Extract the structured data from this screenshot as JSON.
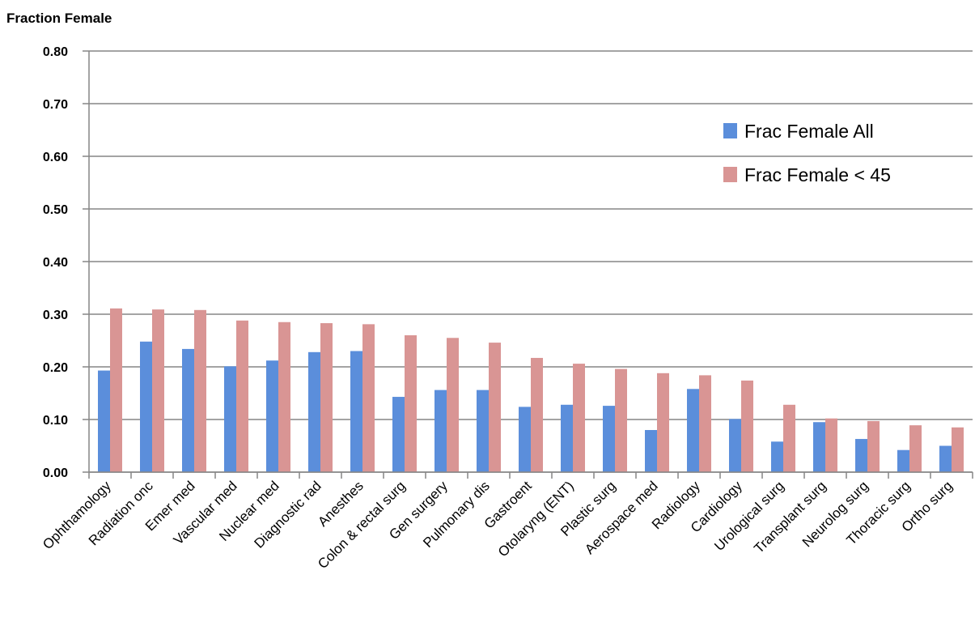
{
  "chart_data": {
    "type": "bar",
    "ylabel": "Fraction Female",
    "ylim": [
      0,
      0.8
    ],
    "yticks": [
      "0.00",
      "0.10",
      "0.20",
      "0.30",
      "0.40",
      "0.50",
      "0.60",
      "0.70",
      "0.80"
    ],
    "grid": true,
    "legend_position": "top-right",
    "categories": [
      "Ophthamology",
      "Radiation onc",
      "Emer med",
      "Vascular med",
      "Nuclear med",
      "Diagnostic rad",
      "Anesthes",
      "Colon & rectal surg",
      "Gen surgery",
      "Pulmonary dis",
      "Gastroent",
      "Otolaryng (ENT)",
      "Plastic surg",
      "Aerospace med",
      "Radiology",
      "Cardiology",
      "Urological surg",
      "Transplant surg",
      "Neurolog surg",
      "Thoracic surg",
      "Ortho surg"
    ],
    "series": [
      {
        "name": "Frac Female All",
        "color": "#5B8EDB",
        "values": [
          0.193,
          0.248,
          0.234,
          0.201,
          0.212,
          0.228,
          0.23,
          0.143,
          0.156,
          0.156,
          0.124,
          0.128,
          0.126,
          0.08,
          0.158,
          0.101,
          0.058,
          0.095,
          0.063,
          0.042,
          0.05
        ]
      },
      {
        "name": "Frac Female < 45",
        "color": "#D99594",
        "values": [
          0.311,
          0.309,
          0.308,
          0.288,
          0.285,
          0.283,
          0.281,
          0.26,
          0.255,
          0.246,
          0.217,
          0.206,
          0.196,
          0.188,
          0.184,
          0.174,
          0.128,
          0.102,
          0.097,
          0.089,
          0.085
        ]
      }
    ]
  }
}
